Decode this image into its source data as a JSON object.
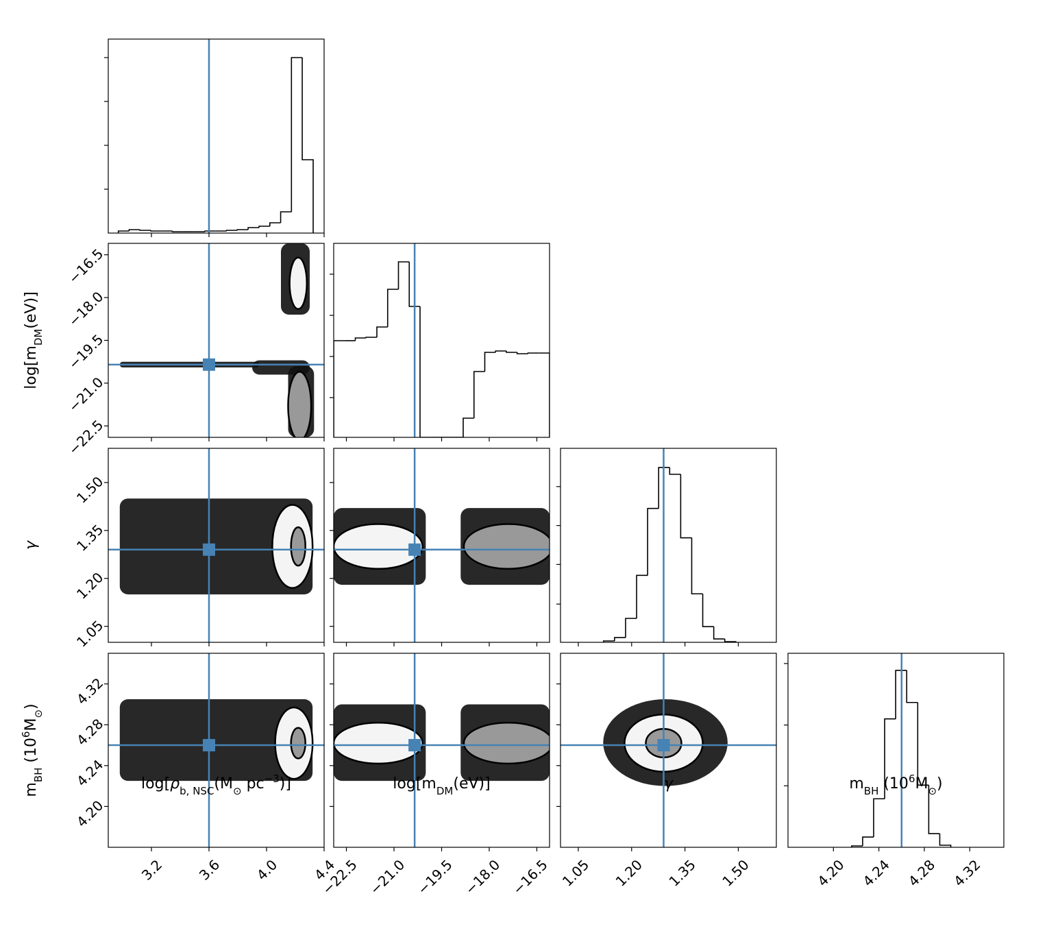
{
  "chart_data": {
    "type": "corner",
    "truth_color": "#4682b4",
    "parameters": [
      {
        "label": [
          {
            "text": "log["
          },
          {
            "text": "ρ",
            "style": "italic"
          },
          {
            "text": "b, NSC",
            "shift": "sub"
          },
          {
            "text": "(M"
          },
          {
            "text": "⊙",
            "shift": "sub"
          },
          {
            "text": " pc"
          },
          {
            "text": "−3",
            "shift": "super"
          },
          {
            "text": ")]"
          }
        ],
        "lim": [
          2.9,
          4.4
        ],
        "ticks": [
          3.2,
          3.6,
          {
            "value": 4.0,
            "label": "4.0"
          },
          4.4
        ],
        "truth": 3.6
      },
      {
        "label": [
          {
            "text": "log[m"
          },
          {
            "text": "DM",
            "shift": "sub"
          },
          {
            "text": "(eV)]"
          }
        ],
        "lim": [
          -22.9,
          -16.1
        ],
        "ticks": [
          {
            "value": -22.5,
            "label": "−22.5"
          },
          {
            "value": -21.0,
            "label": "−21.0"
          },
          {
            "value": -19.5,
            "label": "−19.5"
          },
          {
            "value": -18.0,
            "label": "−18.0"
          },
          {
            "value": -16.5,
            "label": "−16.5"
          }
        ],
        "truth": -20.35
      },
      {
        "label": [
          {
            "text": "γ",
            "style": "italic"
          }
        ],
        "lim": [
          1.0,
          1.607
        ],
        "ticks": [
          1.05,
          {
            "value": 1.2,
            "label": "1.20"
          },
          1.35,
          {
            "value": 1.5,
            "label": "1.50"
          }
        ],
        "truth": 1.29
      },
      {
        "label": [
          {
            "text": "m"
          },
          {
            "text": "BH",
            "shift": "sub"
          },
          {
            "text": " (10"
          },
          {
            "text": "6",
            "shift": "super"
          },
          {
            "text": "M"
          },
          {
            "text": "⊙",
            "shift": "sub"
          },
          {
            "text": ")"
          }
        ],
        "lim": [
          4.16,
          4.35
        ],
        "ticks": [
          {
            "value": 4.2,
            "label": "4.20"
          },
          4.24,
          4.28,
          4.32
        ],
        "truth": 4.26
      }
    ],
    "histograms": [
      {
        "bins": [
          2.97,
          3.045,
          3.12,
          3.196,
          3.271,
          3.346,
          3.421,
          3.496,
          3.572,
          3.647,
          3.722,
          3.797,
          3.872,
          3.948,
          4.023,
          4.098,
          4.173,
          4.248,
          4.324
        ],
        "counts": [
          3,
          5,
          4,
          3,
          3,
          2,
          2,
          2,
          3,
          3,
          4,
          5,
          8,
          10,
          15,
          31,
          256,
          107
        ],
        "ylim": [
          0,
          283
        ],
        "yticks": [
          64,
          128,
          192,
          256
        ]
      },
      {
        "bins": [
          -22.9,
          -22.56,
          -22.22,
          -21.88,
          -21.54,
          -21.2,
          -20.86,
          -20.52,
          -20.18,
          -19.84,
          -19.5,
          -19.16,
          -18.82,
          -18.48,
          -18.14,
          -17.8,
          -17.46,
          -17.12,
          -16.78,
          -16.44,
          -16.1
        ],
        "counts": [
          141,
          141,
          145,
          146,
          161,
          216,
          256,
          191,
          0,
          0,
          0,
          0,
          28,
          96,
          124,
          126,
          124,
          122,
          123,
          123
        ],
        "ylim": [
          0,
          283
        ],
        "yticks": [
          58,
          118,
          178,
          238
        ]
      },
      {
        "bins": [
          1.121,
          1.152,
          1.183,
          1.214,
          1.245,
          1.276,
          1.307,
          1.338,
          1.369,
          1.4,
          1.431,
          1.462,
          1.493
        ],
        "counts": [
          2,
          7,
          35,
          98,
          196,
          256,
          246,
          153,
          71,
          23,
          5,
          1
        ],
        "ylim": [
          0,
          284
        ],
        "yticks": [
          56,
          114,
          171,
          228
        ]
      },
      {
        "bins": [
          4.216,
          4.2257,
          4.2354,
          4.2451,
          4.2548,
          4.2645,
          4.2742,
          4.2839,
          4.2936,
          4.3033
        ],
        "counts": [
          2,
          15,
          71,
          188,
          259,
          212,
          91,
          20,
          3
        ],
        "ylim": [
          0,
          284
        ],
        "yticks": [
          90,
          179,
          269
        ]
      }
    ],
    "pairs": [
      {
        "clouds": [
          {
            "x": [
              2.98,
              3.95
            ],
            "y": [
              -20.45,
              -20.25
            ]
          },
          {
            "x": [
              3.9,
              4.3
            ],
            "y": [
              -20.7,
              -20.2
            ]
          },
          {
            "x": [
              4.15,
              4.33
            ],
            "y": [
              -22.9,
              -20.4
            ]
          },
          {
            "x": [
              4.1,
              4.3
            ],
            "y": [
              -18.6,
              -16.1
            ]
          }
        ],
        "contours": [
          [
            4.22,
            -17.5,
            0.06,
            0.9
          ],
          [
            4.23,
            -21.8,
            0.08,
            1.2
          ]
        ]
      },
      {
        "clouds": [
          {
            "x": [
              2.98,
              4.32
            ],
            "y": [
              1.15,
              1.45
            ]
          }
        ],
        "contours": [
          [
            4.18,
            1.3,
            0.14,
            0.13
          ],
          [
            4.22,
            1.3,
            0.05,
            0.06
          ]
        ]
      },
      {
        "clouds": [
          {
            "x": [
              -22.9,
              -20.0
            ],
            "y": [
              1.18,
              1.42
            ]
          },
          {
            "x": [
              -18.9,
              -16.1
            ],
            "y": [
              1.18,
              1.42
            ]
          }
        ],
        "contours": [
          [
            -21.5,
            1.3,
            1.4,
            0.07
          ],
          [
            -17.4,
            1.3,
            1.4,
            0.07
          ]
        ]
      },
      {
        "clouds": [
          {
            "x": [
              2.98,
              4.32
            ],
            "y": [
              4.225,
              4.305
            ]
          }
        ],
        "contours": [
          [
            4.19,
            4.262,
            0.13,
            0.035
          ],
          [
            4.22,
            4.262,
            0.05,
            0.015
          ]
        ]
      },
      {
        "clouds": [
          {
            "x": [
              -22.9,
              -20.0
            ],
            "y": [
              4.225,
              4.3
            ]
          },
          {
            "x": [
              -18.9,
              -16.1
            ],
            "y": [
              4.225,
              4.3
            ]
          }
        ],
        "contours": [
          [
            -21.5,
            4.262,
            1.4,
            0.02
          ],
          [
            -17.4,
            4.262,
            1.4,
            0.02
          ]
        ]
      },
      {
        "clouds": [
          {
            "x": [
              1.12,
              1.47
            ],
            "y": [
              4.22,
              4.305
            ],
            "shape": "ellipse"
          }
        ],
        "contours": [
          [
            1.29,
            4.262,
            0.11,
            0.028
          ],
          [
            1.29,
            4.262,
            0.05,
            0.014
          ]
        ]
      }
    ]
  }
}
